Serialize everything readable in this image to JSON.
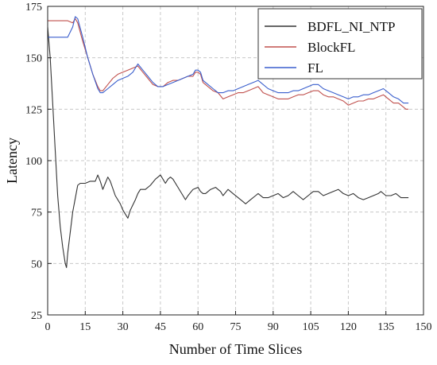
{
  "chart_data": {
    "type": "line",
    "title": "",
    "xlabel": "Number of Time Slices",
    "ylabel": "Latency",
    "xlim": [
      0,
      150
    ],
    "ylim": [
      25,
      175
    ],
    "xticks": [
      0,
      15,
      30,
      45,
      60,
      75,
      90,
      105,
      120,
      135,
      150
    ],
    "yticks": [
      25,
      50,
      75,
      100,
      125,
      150,
      175
    ],
    "grid": true,
    "legend_position": "top-right",
    "series": [
      {
        "name": "BDFL_NI_NTP",
        "color": "#333333",
        "points": [
          [
            0,
            165
          ],
          [
            1,
            150
          ],
          [
            2,
            128
          ],
          [
            3,
            105
          ],
          [
            4,
            83
          ],
          [
            5,
            68
          ],
          [
            6,
            58
          ],
          [
            7,
            50
          ],
          [
            7.5,
            48
          ],
          [
            8,
            55
          ],
          [
            10,
            75
          ],
          [
            12,
            88
          ],
          [
            13,
            89
          ],
          [
            15,
            89
          ],
          [
            17,
            90
          ],
          [
            19,
            90
          ],
          [
            20,
            93
          ],
          [
            21,
            90
          ],
          [
            22,
            86
          ],
          [
            23,
            89
          ],
          [
            24,
            92
          ],
          [
            25,
            90
          ],
          [
            27,
            83
          ],
          [
            29,
            79
          ],
          [
            30,
            76
          ],
          [
            31,
            74
          ],
          [
            32,
            72
          ],
          [
            33,
            76
          ],
          [
            35,
            81
          ],
          [
            36,
            84
          ],
          [
            37,
            86
          ],
          [
            39,
            86
          ],
          [
            41,
            88
          ],
          [
            43,
            91
          ],
          [
            45,
            93
          ],
          [
            46,
            91
          ],
          [
            47,
            89
          ],
          [
            48,
            91
          ],
          [
            49,
            92
          ],
          [
            50,
            91
          ],
          [
            52,
            87
          ],
          [
            54,
            83
          ],
          [
            55,
            81
          ],
          [
            56,
            83
          ],
          [
            58,
            86
          ],
          [
            60,
            87
          ],
          [
            61,
            85
          ],
          [
            62,
            84
          ],
          [
            63,
            84
          ],
          [
            65,
            86
          ],
          [
            67,
            87
          ],
          [
            68,
            86
          ],
          [
            69,
            85
          ],
          [
            70,
            83
          ],
          [
            72,
            86
          ],
          [
            74,
            84
          ],
          [
            76,
            82
          ],
          [
            78,
            80
          ],
          [
            79,
            79
          ],
          [
            81,
            81
          ],
          [
            83,
            83
          ],
          [
            84,
            84
          ],
          [
            86,
            82
          ],
          [
            88,
            82
          ],
          [
            90,
            83
          ],
          [
            92,
            84
          ],
          [
            94,
            82
          ],
          [
            96,
            83
          ],
          [
            98,
            85
          ],
          [
            100,
            83
          ],
          [
            102,
            81
          ],
          [
            104,
            83
          ],
          [
            106,
            85
          ],
          [
            108,
            85
          ],
          [
            110,
            83
          ],
          [
            112,
            84
          ],
          [
            114,
            85
          ],
          [
            116,
            86
          ],
          [
            118,
            84
          ],
          [
            120,
            83
          ],
          [
            122,
            84
          ],
          [
            124,
            82
          ],
          [
            126,
            81
          ],
          [
            128,
            82
          ],
          [
            130,
            83
          ],
          [
            132,
            84
          ],
          [
            133,
            85
          ],
          [
            135,
            83
          ],
          [
            137,
            83
          ],
          [
            139,
            84
          ],
          [
            141,
            82
          ],
          [
            143,
            82
          ],
          [
            144,
            82
          ]
        ]
      },
      {
        "name": "BlockFL",
        "color": "#c0504d",
        "points": [
          [
            0,
            168
          ],
          [
            4,
            168
          ],
          [
            8,
            168
          ],
          [
            10,
            167
          ],
          [
            11,
            169
          ],
          [
            12,
            167
          ],
          [
            14,
            158
          ],
          [
            16,
            150
          ],
          [
            18,
            142
          ],
          [
            20,
            136
          ],
          [
            21,
            134
          ],
          [
            22,
            134
          ],
          [
            24,
            137
          ],
          [
            26,
            140
          ],
          [
            28,
            142
          ],
          [
            30,
            143
          ],
          [
            32,
            144
          ],
          [
            34,
            145
          ],
          [
            36,
            146
          ],
          [
            38,
            143
          ],
          [
            40,
            140
          ],
          [
            42,
            137
          ],
          [
            44,
            136
          ],
          [
            46,
            136
          ],
          [
            48,
            138
          ],
          [
            50,
            139
          ],
          [
            52,
            139
          ],
          [
            54,
            140
          ],
          [
            56,
            141
          ],
          [
            58,
            141
          ],
          [
            59,
            143
          ],
          [
            60,
            143
          ],
          [
            61,
            142
          ],
          [
            62,
            138
          ],
          [
            64,
            136
          ],
          [
            66,
            134
          ],
          [
            68,
            133
          ],
          [
            70,
            130
          ],
          [
            72,
            131
          ],
          [
            74,
            132
          ],
          [
            76,
            133
          ],
          [
            78,
            133
          ],
          [
            80,
            134
          ],
          [
            82,
            135
          ],
          [
            84,
            136
          ],
          [
            86,
            133
          ],
          [
            88,
            132
          ],
          [
            90,
            131
          ],
          [
            92,
            130
          ],
          [
            94,
            130
          ],
          [
            96,
            130
          ],
          [
            98,
            131
          ],
          [
            100,
            132
          ],
          [
            102,
            132
          ],
          [
            104,
            133
          ],
          [
            106,
            134
          ],
          [
            108,
            134
          ],
          [
            110,
            132
          ],
          [
            112,
            131
          ],
          [
            114,
            131
          ],
          [
            116,
            130
          ],
          [
            118,
            129
          ],
          [
            120,
            127
          ],
          [
            122,
            128
          ],
          [
            124,
            129
          ],
          [
            126,
            129
          ],
          [
            128,
            130
          ],
          [
            130,
            130
          ],
          [
            132,
            131
          ],
          [
            134,
            132
          ],
          [
            136,
            130
          ],
          [
            138,
            128
          ],
          [
            140,
            128
          ],
          [
            142,
            126
          ],
          [
            143,
            125
          ],
          [
            144,
            125
          ]
        ]
      },
      {
        "name": "FL",
        "color": "#3a5fcd",
        "points": [
          [
            0,
            160
          ],
          [
            4,
            160
          ],
          [
            8,
            160
          ],
          [
            10,
            165
          ],
          [
            11,
            170
          ],
          [
            12,
            169
          ],
          [
            14,
            160
          ],
          [
            16,
            150
          ],
          [
            18,
            142
          ],
          [
            20,
            135
          ],
          [
            21,
            133
          ],
          [
            22,
            133
          ],
          [
            24,
            135
          ],
          [
            26,
            137
          ],
          [
            28,
            139
          ],
          [
            30,
            140
          ],
          [
            32,
            141
          ],
          [
            34,
            143
          ],
          [
            36,
            147
          ],
          [
            38,
            144
          ],
          [
            40,
            141
          ],
          [
            42,
            138
          ],
          [
            44,
            136
          ],
          [
            46,
            136
          ],
          [
            48,
            137
          ],
          [
            50,
            138
          ],
          [
            52,
            139
          ],
          [
            54,
            140
          ],
          [
            56,
            141
          ],
          [
            58,
            142
          ],
          [
            59,
            144
          ],
          [
            60,
            144
          ],
          [
            61,
            143
          ],
          [
            62,
            139
          ],
          [
            64,
            137
          ],
          [
            66,
            135
          ],
          [
            68,
            133
          ],
          [
            70,
            133
          ],
          [
            72,
            134
          ],
          [
            74,
            134
          ],
          [
            76,
            135
          ],
          [
            78,
            136
          ],
          [
            80,
            137
          ],
          [
            82,
            138
          ],
          [
            84,
            139
          ],
          [
            86,
            137
          ],
          [
            88,
            135
          ],
          [
            90,
            134
          ],
          [
            92,
            133
          ],
          [
            94,
            133
          ],
          [
            96,
            133
          ],
          [
            98,
            134
          ],
          [
            100,
            134
          ],
          [
            102,
            135
          ],
          [
            104,
            136
          ],
          [
            106,
            137
          ],
          [
            108,
            137
          ],
          [
            110,
            135
          ],
          [
            112,
            134
          ],
          [
            114,
            133
          ],
          [
            116,
            132
          ],
          [
            118,
            131
          ],
          [
            120,
            130
          ],
          [
            122,
            131
          ],
          [
            124,
            131
          ],
          [
            126,
            132
          ],
          [
            128,
            132
          ],
          [
            130,
            133
          ],
          [
            132,
            134
          ],
          [
            134,
            135
          ],
          [
            136,
            133
          ],
          [
            138,
            131
          ],
          [
            140,
            130
          ],
          [
            142,
            128
          ],
          [
            143,
            128
          ],
          [
            144,
            128
          ]
        ]
      }
    ]
  }
}
